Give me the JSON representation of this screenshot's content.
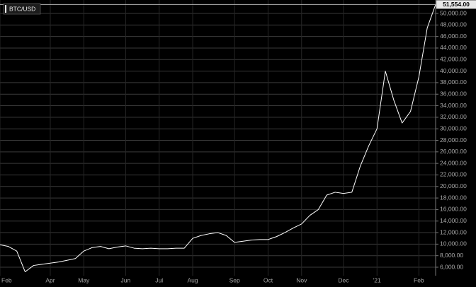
{
  "chart_data": {
    "type": "line",
    "x": [
      "Feb",
      null,
      null,
      null,
      null,
      null,
      "Apr",
      null,
      null,
      null,
      "May",
      null,
      null,
      null,
      null,
      "Jun",
      null,
      null,
      null,
      "Jul",
      null,
      null,
      null,
      "Aug",
      null,
      null,
      null,
      null,
      "Sep",
      null,
      null,
      null,
      "Oct",
      null,
      null,
      null,
      "Nov",
      null,
      null,
      null,
      null,
      "Dec",
      null,
      null,
      null,
      "'21",
      null,
      null,
      null,
      null,
      "Feb",
      null,
      null
    ],
    "series": [
      {
        "name": "BTC/USD",
        "color": "#ffffff",
        "values": [
          9900,
          9600,
          8800,
          5200,
          6300,
          6500,
          6700,
          6900,
          7200,
          7500,
          8800,
          9400,
          9600,
          9200,
          9500,
          9700,
          9300,
          9200,
          9300,
          9200,
          9200,
          9300,
          9300,
          11000,
          11500,
          11800,
          12000,
          11500,
          10300,
          10500,
          10700,
          10800,
          10800,
          11300,
          12000,
          12800,
          13500,
          15000,
          16000,
          18500,
          19000,
          18800,
          19000,
          23500,
          27000,
          30000,
          40000,
          35000,
          31000,
          33000,
          39000,
          47500,
          51554
        ],
        "value_labels": [
          null,
          null,
          null,
          null,
          null,
          null,
          null,
          null,
          null,
          null,
          null,
          null,
          null,
          null,
          null,
          null,
          null,
          null,
          null,
          null,
          null,
          null,
          null,
          null,
          null,
          null,
          null,
          null,
          null,
          null,
          null,
          null,
          null,
          null,
          null,
          null,
          null,
          null,
          null,
          null,
          null,
          null,
          null,
          null,
          null,
          null,
          null,
          null,
          null,
          null,
          null,
          null,
          "51,554.00"
        ]
      }
    ],
    "ylim": [
      4530,
      52330
    ],
    "yticks": [
      {
        "value": 6000,
        "label": "6,000.00"
      },
      {
        "value": 8000,
        "label": "8,000.00"
      },
      {
        "value": 10000,
        "label": "10,000.00"
      },
      {
        "value": 12000,
        "label": "12,000.00"
      },
      {
        "value": 14000,
        "label": "14,000.00"
      },
      {
        "value": 16000,
        "label": "16,000.00"
      },
      {
        "value": 18000,
        "label": "18,000.00"
      },
      {
        "value": 20000,
        "label": "20,000.00"
      },
      {
        "value": 22000,
        "label": "22,000.00"
      },
      {
        "value": 24000,
        "label": "24,000.00"
      },
      {
        "value": 26000,
        "label": "26,000.00"
      },
      {
        "value": 28000,
        "label": "28,000.00"
      },
      {
        "value": 30000,
        "label": "30,000.00"
      },
      {
        "value": 32000,
        "label": "32,000.00"
      },
      {
        "value": 34000,
        "label": "34,000.00"
      },
      {
        "value": 36000,
        "label": "36,000.00"
      },
      {
        "value": 38000,
        "label": "38,000.00"
      },
      {
        "value": 40000,
        "label": "40,000.00"
      },
      {
        "value": 42000,
        "label": "42,000.00"
      },
      {
        "value": 44000,
        "label": "44,000.00"
      },
      {
        "value": 46000,
        "label": "46,000.00"
      },
      {
        "value": 48000,
        "label": "48,000.00"
      },
      {
        "value": 50000,
        "label": "50,000.00"
      }
    ],
    "grid": true
  }
}
